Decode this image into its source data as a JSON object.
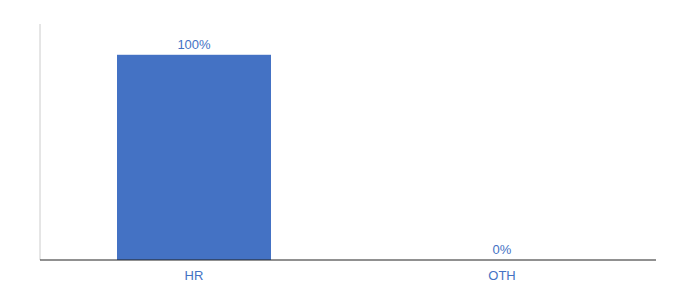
{
  "chart_data": {
    "type": "bar",
    "categories": [
      "HR",
      "OTH"
    ],
    "values": [
      100,
      0
    ],
    "value_labels": [
      "100%",
      "0%"
    ],
    "data_labels": true,
    "color": "#4472c4",
    "ylim": [
      0,
      115
    ],
    "tick_labels": "x"
  }
}
